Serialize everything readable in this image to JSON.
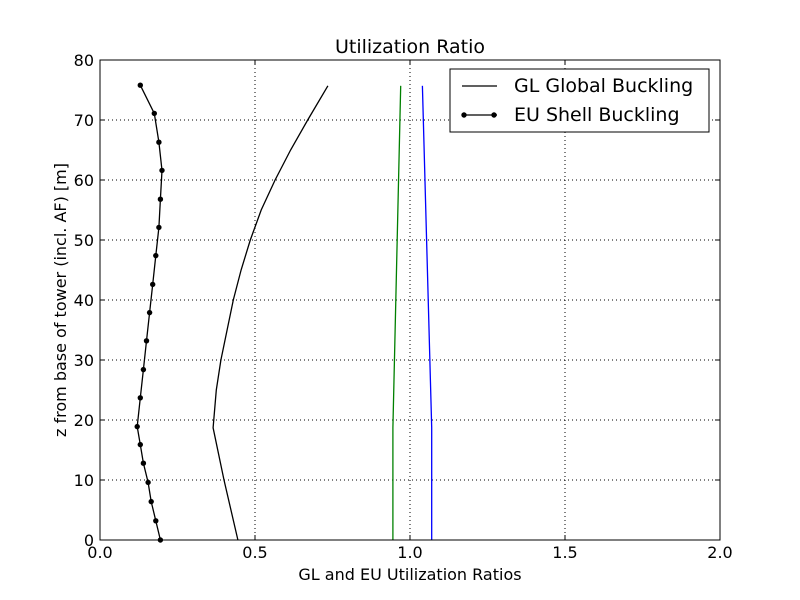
{
  "chart_data": {
    "type": "line",
    "title": "Utilization Ratio",
    "xlabel": "GL and EU Utilization Ratios",
    "ylabel": "z from base of tower (incl. AF) [m]",
    "xlim": [
      0.0,
      2.0
    ],
    "ylim": [
      0,
      80
    ],
    "x_ticks": [
      "0.0",
      "0.5",
      "1.0",
      "1.5",
      "2.0"
    ],
    "y_ticks": [
      "0",
      "10",
      "20",
      "30",
      "40",
      "50",
      "60",
      "70",
      "80"
    ],
    "grid": true,
    "legend_position": "top-right",
    "series": [
      {
        "name": "GL Global Buckling",
        "color": "#000000",
        "marker": "none",
        "points": [
          [
            0.445,
            0
          ],
          [
            0.4,
            10
          ],
          [
            0.365,
            18.7
          ],
          [
            0.375,
            25
          ],
          [
            0.39,
            30
          ],
          [
            0.41,
            35
          ],
          [
            0.43,
            40
          ],
          [
            0.455,
            45
          ],
          [
            0.485,
            50
          ],
          [
            0.52,
            55
          ],
          [
            0.565,
            60
          ],
          [
            0.615,
            65
          ],
          [
            0.67,
            70
          ],
          [
            0.735,
            75.7
          ]
        ]
      },
      {
        "name": "EU Shell Buckling",
        "color": "#000000",
        "marker": "dot",
        "points": [
          [
            0.195,
            0
          ],
          [
            0.18,
            3.2
          ],
          [
            0.165,
            6.4
          ],
          [
            0.155,
            9.6
          ],
          [
            0.14,
            12.8
          ],
          [
            0.13,
            15.9
          ],
          [
            0.12,
            18.9
          ],
          [
            0.13,
            23.7
          ],
          [
            0.14,
            28.4
          ],
          [
            0.15,
            33.2
          ],
          [
            0.16,
            37.9
          ],
          [
            0.17,
            42.6
          ],
          [
            0.18,
            47.4
          ],
          [
            0.19,
            52.1
          ],
          [
            0.195,
            56.8
          ],
          [
            0.2,
            61.6
          ],
          [
            0.19,
            66.3
          ],
          [
            0.175,
            71.1
          ],
          [
            0.13,
            75.8
          ]
        ]
      },
      {
        "color": "#008000",
        "marker": "none",
        "points": [
          [
            0.945,
            0
          ],
          [
            0.945,
            18.7
          ],
          [
            0.97,
            75.7
          ]
        ]
      },
      {
        "color": "#0000ff",
        "marker": "none",
        "points": [
          [
            1.07,
            0
          ],
          [
            1.07,
            18.7
          ],
          [
            1.04,
            75.7
          ]
        ]
      }
    ]
  }
}
